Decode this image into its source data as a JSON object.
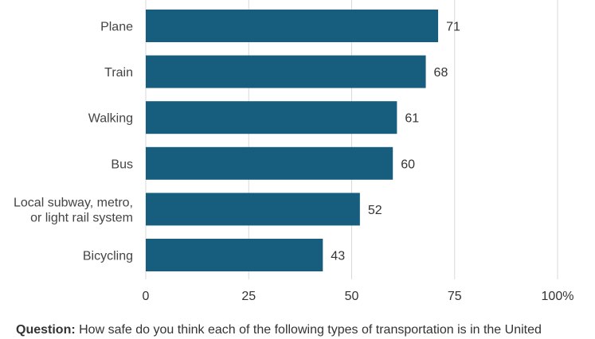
{
  "chart_data": {
    "type": "bar",
    "orientation": "horizontal",
    "categories": [
      "Plane",
      "Train",
      "Walking",
      "Bus",
      "Local subway, metro, or light rail system",
      "Bicycling"
    ],
    "category_lines": [
      [
        "Plane"
      ],
      [
        "Train"
      ],
      [
        "Walking"
      ],
      [
        "Bus"
      ],
      [
        "Local subway, metro,",
        "or light rail system"
      ],
      [
        "Bicycling"
      ]
    ],
    "values": [
      71,
      68,
      61,
      60,
      52,
      43
    ],
    "value_labels": [
      "71",
      "68",
      "61",
      "60",
      "52",
      "43"
    ],
    "xticks": [
      "0",
      "25",
      "50",
      "75",
      "100%"
    ],
    "xtick_values": [
      0,
      25,
      50,
      75,
      100
    ],
    "xlim": [
      0,
      100
    ],
    "grid": true,
    "bar_color": "#175e7e",
    "grid_color": "#d9d9d9"
  },
  "footer": {
    "question_label": "Question:",
    "question_text": " How safe do you think each of the following types of transportation is in the United"
  }
}
